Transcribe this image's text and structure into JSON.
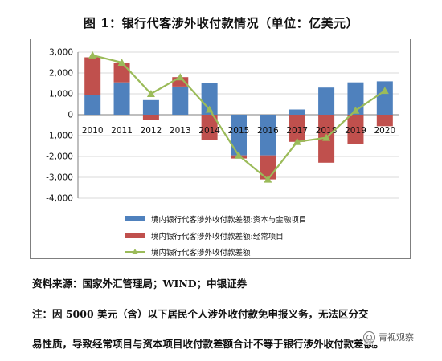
{
  "header": {
    "title": "图 1：银行代客涉外收付款情况（单位：亿美元）"
  },
  "footer": {
    "source": "资料来源：国家外汇管理局；WIND；中银证券",
    "note_line1": "注：因 5000 美元（含）以下居民个人涉外收付款免申报义务，无法区分交",
    "note_line2": "易性质，导致经常项目与资本项目收付款差额合计不等于银行涉外收付款差额。",
    "watermark": "青视观察"
  },
  "colors": {
    "capital": "#4f81bd",
    "current": "#c0504d",
    "total": "#9bbb59",
    "grid": "#d9d9d9",
    "axis": "#7f7f7f"
  },
  "chart_data": {
    "type": "bar",
    "stacked": true,
    "categories": [
      "2010",
      "2011",
      "2012",
      "2013",
      "2014",
      "2015",
      "2016",
      "2017",
      "2018",
      "2019",
      "2020"
    ],
    "ylim": [
      -4000,
      3000
    ],
    "yticks": [
      3000,
      2000,
      1000,
      0,
      -1000,
      -2000,
      -3000,
      -4000
    ],
    "ytick_labels": [
      "3,000",
      "2,000",
      "1,000",
      "0",
      "-1,000",
      "-2,000",
      "-3,000",
      "-4,000"
    ],
    "grid": true,
    "legend_position": "bottom",
    "series": [
      {
        "key": "capital",
        "name": "境内银行代客涉外收付款差额:资本与金融项目",
        "kind": "bar",
        "values": [
          950,
          1550,
          700,
          1350,
          1500,
          -1950,
          -1950,
          250,
          1300,
          1550,
          1600
        ]
      },
      {
        "key": "current",
        "name": "境内银行代客涉外收付款差额:经常项目",
        "kind": "bar",
        "values": [
          1800,
          950,
          -250,
          450,
          -1200,
          -150,
          -1150,
          -1300,
          -2300,
          -1400,
          -550
        ]
      },
      {
        "key": "total",
        "name": "境内银行代客涉外收付款差额",
        "kind": "line",
        "values": [
          2850,
          2500,
          1000,
          1800,
          250,
          -1950,
          -3100,
          -1300,
          -1100,
          200,
          1150
        ]
      }
    ]
  }
}
